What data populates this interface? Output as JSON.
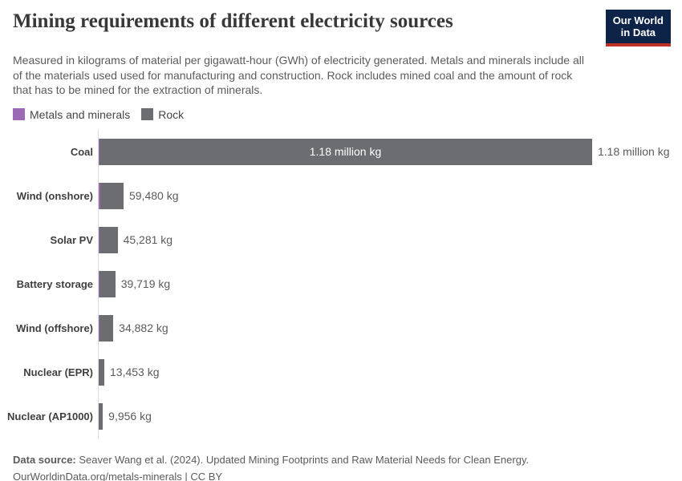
{
  "header": {
    "title": "Mining requirements of different electricity sources",
    "logo": {
      "line1": "Our World",
      "line2": "in Data"
    }
  },
  "subtitle": "Measured in kilograms of material per gigawatt-hour (GWh) of electricity generated. Metals and minerals include all of the materials used used for manufacturing and construction. Rock includes mined coal and the amount of rock that has to be mined for the extraction of minerals.",
  "colors": {
    "metals": "#9a6bb4",
    "rock": "#6c6d70",
    "axis": "#dcdcdc",
    "logo-navy": "#0d2347",
    "logo-red": "#bc3227"
  },
  "chart_data": {
    "type": "bar",
    "orientation": "horizontal",
    "title": "Mining requirements of different electricity sources",
    "unit": "kg of material per GWh",
    "legend_position": "top-left",
    "legend": [
      {
        "label": "Metals and minerals",
        "color": "#9a6bb4"
      },
      {
        "label": "Rock",
        "color": "#6c6d70"
      }
    ],
    "xlim": [
      0,
      1180000
    ],
    "bars": [
      {
        "label": "Coal",
        "total_kg": 1180000,
        "metals_kg_estimated": 1000,
        "value_label": "1.18 million kg",
        "inner_label": "1.18 million kg"
      },
      {
        "label": "Wind (onshore)",
        "total_kg": 59480,
        "metals_kg_estimated": 4000,
        "value_label": "59,480 kg"
      },
      {
        "label": "Solar PV",
        "total_kg": 45281,
        "metals_kg_estimated": 1900,
        "value_label": "45,281 kg"
      },
      {
        "label": "Battery storage",
        "total_kg": 39719,
        "metals_kg_estimated": 1800,
        "value_label": "39,719 kg"
      },
      {
        "label": "Wind (offshore)",
        "total_kg": 34882,
        "metals_kg_estimated": 2800,
        "value_label": "34,882 kg"
      },
      {
        "label": "Nuclear (EPR)",
        "total_kg": 13453,
        "metals_kg_estimated": 700,
        "value_label": "13,453 kg"
      },
      {
        "label": "Nuclear (AP1000)",
        "total_kg": 9956,
        "metals_kg_estimated": 500,
        "value_label": "9,956 kg"
      }
    ]
  },
  "footer": {
    "datasource_label": "Data source:",
    "datasource_text": " Seaver Wang et al. (2024). Updated Mining Footprints and Raw Material Needs for Clean Energy.",
    "license_line": "OurWorldinData.org/metals-minerals | CC BY"
  }
}
